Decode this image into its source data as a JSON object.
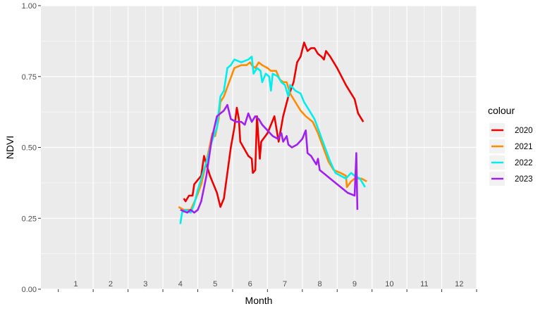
{
  "chart_data": {
    "type": "line",
    "xlabel": "Month",
    "ylabel": "NDVI",
    "xlim": [
      0,
      12.5
    ],
    "ylim": [
      0,
      1
    ],
    "x_ticks": [
      "1",
      "2",
      "3",
      "4",
      "5",
      "6",
      "7",
      "8",
      "9",
      "10",
      "11",
      "12"
    ],
    "y_ticks": [
      "0.00",
      "0.25",
      "0.50",
      "0.75",
      "1.00"
    ],
    "y_tick_values": [
      0,
      0.25,
      0.5,
      0.75,
      1.0
    ],
    "grid": true,
    "legend": {
      "title": "colour",
      "position": "right"
    },
    "series": [
      {
        "name": "2020",
        "color": "#ee0000",
        "points": [
          [
            4.1,
            0.32
          ],
          [
            4.15,
            0.31
          ],
          [
            4.25,
            0.33
          ],
          [
            4.35,
            0.33
          ],
          [
            4.4,
            0.37
          ],
          [
            4.6,
            0.4
          ],
          [
            4.68,
            0.47
          ],
          [
            4.75,
            0.44
          ],
          [
            4.85,
            0.4
          ],
          [
            5.05,
            0.34
          ],
          [
            5.15,
            0.29
          ],
          [
            5.25,
            0.32
          ],
          [
            5.45,
            0.5
          ],
          [
            5.55,
            0.57
          ],
          [
            5.62,
            0.64
          ],
          [
            5.68,
            0.6
          ],
          [
            5.72,
            0.52
          ],
          [
            5.95,
            0.47
          ],
          [
            6.05,
            0.46
          ],
          [
            6.08,
            0.41
          ],
          [
            6.15,
            0.42
          ],
          [
            6.2,
            0.61
          ],
          [
            6.28,
            0.46
          ],
          [
            6.32,
            0.52
          ],
          [
            6.5,
            0.55
          ],
          [
            6.7,
            0.61
          ],
          [
            6.82,
            0.52
          ],
          [
            6.95,
            0.61
          ],
          [
            7.1,
            0.68
          ],
          [
            7.25,
            0.73
          ],
          [
            7.35,
            0.8
          ],
          [
            7.45,
            0.82
          ],
          [
            7.55,
            0.87
          ],
          [
            7.65,
            0.84
          ],
          [
            7.75,
            0.85
          ],
          [
            7.85,
            0.85
          ],
          [
            7.95,
            0.83
          ],
          [
            8.05,
            0.82
          ],
          [
            8.12,
            0.81
          ],
          [
            8.18,
            0.84
          ],
          [
            8.3,
            0.82
          ],
          [
            8.5,
            0.78
          ],
          [
            8.75,
            0.72
          ],
          [
            9.0,
            0.67
          ],
          [
            9.1,
            0.62
          ],
          [
            9.25,
            0.59
          ]
        ]
      },
      {
        "name": "2021",
        "color": "#ff8c00",
        "points": [
          [
            3.95,
            0.29
          ],
          [
            4.1,
            0.28
          ],
          [
            4.3,
            0.28
          ],
          [
            4.45,
            0.32
          ],
          [
            4.6,
            0.37
          ],
          [
            4.75,
            0.45
          ],
          [
            4.85,
            0.51
          ],
          [
            4.92,
            0.55
          ],
          [
            5.0,
            0.54
          ],
          [
            5.1,
            0.6
          ],
          [
            5.15,
            0.66
          ],
          [
            5.25,
            0.68
          ],
          [
            5.4,
            0.73
          ],
          [
            5.55,
            0.78
          ],
          [
            5.75,
            0.79
          ],
          [
            5.9,
            0.79
          ],
          [
            6.0,
            0.8
          ],
          [
            6.05,
            0.79
          ],
          [
            6.15,
            0.78
          ],
          [
            6.25,
            0.8
          ],
          [
            6.35,
            0.79
          ],
          [
            6.5,
            0.78
          ],
          [
            6.6,
            0.77
          ],
          [
            6.75,
            0.77
          ],
          [
            6.85,
            0.74
          ],
          [
            6.95,
            0.73
          ],
          [
            7.05,
            0.73
          ],
          [
            7.15,
            0.69
          ],
          [
            7.3,
            0.66
          ],
          [
            7.45,
            0.63
          ],
          [
            7.6,
            0.61
          ],
          [
            7.8,
            0.59
          ],
          [
            7.95,
            0.55
          ],
          [
            8.1,
            0.5
          ],
          [
            8.25,
            0.45
          ],
          [
            8.4,
            0.42
          ],
          [
            8.6,
            0.41
          ],
          [
            8.75,
            0.4
          ],
          [
            8.78,
            0.36
          ],
          [
            8.9,
            0.38
          ],
          [
            9.0,
            0.39
          ],
          [
            9.2,
            0.39
          ],
          [
            9.35,
            0.38
          ]
        ]
      },
      {
        "name": "2022",
        "color": "#00eeee",
        "points": [
          [
            4.0,
            0.23
          ],
          [
            4.05,
            0.27
          ],
          [
            4.15,
            0.28
          ],
          [
            4.3,
            0.27
          ],
          [
            4.4,
            0.3
          ],
          [
            4.5,
            0.35
          ],
          [
            4.65,
            0.41
          ],
          [
            4.8,
            0.47
          ],
          [
            4.9,
            0.52
          ],
          [
            5.05,
            0.57
          ],
          [
            5.15,
            0.68
          ],
          [
            5.25,
            0.7
          ],
          [
            5.35,
            0.78
          ],
          [
            5.45,
            0.79
          ],
          [
            5.55,
            0.81
          ],
          [
            5.75,
            0.8
          ],
          [
            5.95,
            0.81
          ],
          [
            6.05,
            0.82
          ],
          [
            6.1,
            0.76
          ],
          [
            6.2,
            0.78
          ],
          [
            6.3,
            0.77
          ],
          [
            6.35,
            0.73
          ],
          [
            6.45,
            0.76
          ],
          [
            6.55,
            0.75
          ],
          [
            6.6,
            0.7
          ],
          [
            6.65,
            0.76
          ],
          [
            6.8,
            0.75
          ],
          [
            6.9,
            0.73
          ],
          [
            7.0,
            0.72
          ],
          [
            7.1,
            0.68
          ],
          [
            7.15,
            0.72
          ],
          [
            7.3,
            0.7
          ],
          [
            7.45,
            0.69
          ],
          [
            7.55,
            0.66
          ],
          [
            7.7,
            0.63
          ],
          [
            7.85,
            0.6
          ],
          [
            8.0,
            0.55
          ],
          [
            8.15,
            0.5
          ],
          [
            8.3,
            0.45
          ],
          [
            8.45,
            0.41
          ],
          [
            8.6,
            0.4
          ],
          [
            8.75,
            0.39
          ],
          [
            8.9,
            0.41
          ],
          [
            9.0,
            0.4
          ],
          [
            9.15,
            0.39
          ],
          [
            9.3,
            0.36
          ]
        ]
      },
      {
        "name": "2023",
        "color": "#a020f0",
        "points": [
          [
            4.0,
            0.28
          ],
          [
            4.2,
            0.27
          ],
          [
            4.3,
            0.28
          ],
          [
            4.4,
            0.27
          ],
          [
            4.5,
            0.28
          ],
          [
            4.6,
            0.31
          ],
          [
            4.75,
            0.4
          ],
          [
            4.9,
            0.53
          ],
          [
            5.05,
            0.61
          ],
          [
            5.25,
            0.63
          ],
          [
            5.35,
            0.65
          ],
          [
            5.45,
            0.6
          ],
          [
            5.6,
            0.59
          ],
          [
            5.75,
            0.59
          ],
          [
            5.85,
            0.58
          ],
          [
            5.95,
            0.62
          ],
          [
            6.05,
            0.59
          ],
          [
            6.15,
            0.61
          ],
          [
            6.25,
            0.6
          ],
          [
            6.35,
            0.58
          ],
          [
            6.5,
            0.56
          ],
          [
            6.65,
            0.54
          ],
          [
            6.8,
            0.53
          ],
          [
            6.9,
            0.55
          ],
          [
            6.95,
            0.52
          ],
          [
            7.05,
            0.54
          ],
          [
            7.1,
            0.51
          ],
          [
            7.2,
            0.5
          ],
          [
            7.35,
            0.51
          ],
          [
            7.5,
            0.53
          ],
          [
            7.6,
            0.56
          ],
          [
            7.65,
            0.48
          ],
          [
            7.75,
            0.47
          ],
          [
            7.85,
            0.45
          ],
          [
            7.9,
            0.44
          ],
          [
            7.95,
            0.46
          ],
          [
            8.0,
            0.42
          ],
          [
            8.1,
            0.41
          ],
          [
            8.2,
            0.4
          ],
          [
            8.4,
            0.38
          ],
          [
            8.6,
            0.36
          ],
          [
            8.8,
            0.34
          ],
          [
            9.0,
            0.33
          ],
          [
            9.05,
            0.48
          ],
          [
            9.08,
            0.28
          ]
        ]
      }
    ]
  }
}
